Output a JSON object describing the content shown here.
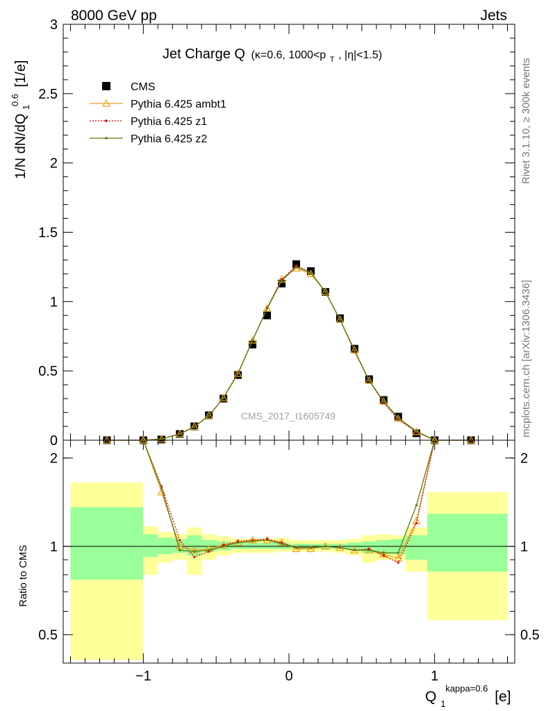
{
  "header": {
    "left_label": "8000 GeV pp",
    "right_label": "Jets",
    "side_label_top": "Rivet 3.1.10, ≥ 300k events",
    "side_label_bottom": "mcplots.cern.ch [arXiv:1306.3436]",
    "watermark": "CMS_2017_I1605749"
  },
  "chart_data": [
    {
      "type": "scatter",
      "title_main": "Jet Charge Q",
      "title_sub": "(κ=0.6, 1000<p",
      "title_sub_subscript": "T",
      "title_sub_end": ", |η|<1.5)",
      "ylabel": "1/N dN/dQ",
      "ylabel_sub": "1",
      "ylabel_sup": "0.6",
      "ylabel_unit": "[1/e]",
      "xlim": [
        -1.55,
        1.55
      ],
      "ylim": [
        0,
        3
      ],
      "y_ticks": [
        "0",
        "0.5",
        "1",
        "1.5",
        "2",
        "2.5",
        "3"
      ],
      "legend_position": "top-left",
      "x": [
        -1.25,
        -1.0,
        -0.875,
        -0.75,
        -0.65,
        -0.55,
        -0.45,
        -0.35,
        -0.25,
        -0.15,
        -0.05,
        0.05,
        0.15,
        0.25,
        0.35,
        0.45,
        0.55,
        0.65,
        0.75,
        0.875,
        1.0,
        1.25
      ],
      "series": [
        {
          "name": "CMS",
          "color": "#000000",
          "marker": "square",
          "values": [
            0.0,
            0.0,
            0.005,
            0.045,
            0.1,
            0.18,
            0.3,
            0.47,
            0.69,
            0.9,
            1.13,
            1.27,
            1.22,
            1.07,
            0.88,
            0.66,
            0.44,
            0.29,
            0.17,
            0.05,
            0.0,
            0.0
          ]
        },
        {
          "name": "Pythia 6.425 ambt1",
          "color": "#e8a21a",
          "marker": "triangle",
          "values": [
            0.0,
            0.0,
            0.008,
            0.045,
            0.098,
            0.178,
            0.305,
            0.48,
            0.72,
            0.95,
            1.16,
            1.24,
            1.2,
            1.07,
            0.87,
            0.65,
            0.43,
            0.28,
            0.155,
            0.06,
            0.0,
            0.0
          ]
        },
        {
          "name": "Pythia 6.425 z1",
          "color": "#dd0000",
          "marker": "dot",
          "values": [
            0.0,
            0.0,
            0.008,
            0.047,
            0.097,
            0.175,
            0.307,
            0.485,
            0.72,
            0.955,
            1.16,
            1.26,
            1.21,
            1.07,
            0.87,
            0.64,
            0.43,
            0.27,
            0.15,
            0.06,
            0.0,
            0.0
          ]
        },
        {
          "name": "Pythia 6.425 z2",
          "color": "#5a7a10",
          "marker": "dot",
          "values": [
            0.0,
            0.0,
            0.008,
            0.044,
            0.096,
            0.176,
            0.305,
            0.48,
            0.72,
            0.95,
            1.15,
            1.25,
            1.21,
            1.07,
            0.87,
            0.65,
            0.43,
            0.28,
            0.16,
            0.065,
            0.0,
            0.0
          ]
        }
      ]
    },
    {
      "type": "line",
      "ylabel": "Ratio to CMS",
      "xlabel": "Q",
      "xlabel_sub": "1",
      "xlabel_sup": "kappa=0.6",
      "xlabel_unit": "[e]",
      "xlim": [
        -1.55,
        1.55
      ],
      "ylim": [
        0.4,
        2.3
      ],
      "x_ticks": [
        "−1",
        "0",
        "1"
      ],
      "y_ticks": [
        "0.5",
        "1",
        "2"
      ],
      "bands": [
        {
          "x0": -1.5,
          "x1": -1.0,
          "y_inner": [
            0.77,
            1.36
          ],
          "y_outer": [
            0.41,
            1.65
          ]
        },
        {
          "x0": -1.0,
          "x1": -0.9,
          "y_inner": [
            0.92,
            1.1
          ],
          "y_outer": [
            0.8,
            1.17
          ]
        },
        {
          "x0": -0.9,
          "x1": -0.8,
          "y_inner": [
            0.94,
            1.07
          ],
          "y_outer": [
            0.88,
            1.12
          ]
        },
        {
          "x0": -0.8,
          "x1": -0.7,
          "y_inner": [
            0.95,
            1.06
          ],
          "y_outer": [
            0.9,
            1.1
          ]
        },
        {
          "x0": -0.7,
          "x1": -0.6,
          "y_inner": [
            0.93,
            1.09
          ],
          "y_outer": [
            0.8,
            1.16
          ]
        },
        {
          "x0": -0.6,
          "x1": -0.5,
          "y_inner": [
            0.96,
            1.05
          ],
          "y_outer": [
            0.9,
            1.1
          ]
        },
        {
          "x0": -0.5,
          "x1": -0.4,
          "y_inner": [
            0.97,
            1.04
          ],
          "y_outer": [
            0.93,
            1.08
          ]
        },
        {
          "x0": -0.4,
          "x1": -0.3,
          "y_inner": [
            0.98,
            1.03
          ],
          "y_outer": [
            0.95,
            1.06
          ]
        },
        {
          "x0": -0.3,
          "x1": -0.2,
          "y_inner": [
            0.98,
            1.03
          ],
          "y_outer": [
            0.95,
            1.06
          ]
        },
        {
          "x0": -0.2,
          "x1": -0.1,
          "y_inner": [
            0.98,
            1.03
          ],
          "y_outer": [
            0.95,
            1.06
          ]
        },
        {
          "x0": -0.1,
          "x1": 0.0,
          "y_inner": [
            0.98,
            1.03
          ],
          "y_outer": [
            0.96,
            1.07
          ]
        },
        {
          "x0": 0.0,
          "x1": 0.1,
          "y_inner": [
            0.98,
            1.02
          ],
          "y_outer": [
            0.96,
            1.05
          ]
        },
        {
          "x0": 0.1,
          "x1": 0.2,
          "y_inner": [
            0.98,
            1.02
          ],
          "y_outer": [
            0.96,
            1.05
          ]
        },
        {
          "x0": 0.2,
          "x1": 0.3,
          "y_inner": [
            0.98,
            1.02
          ],
          "y_outer": [
            0.96,
            1.05
          ]
        },
        {
          "x0": 0.3,
          "x1": 0.4,
          "y_inner": [
            0.98,
            1.02
          ],
          "y_outer": [
            0.95,
            1.05
          ]
        },
        {
          "x0": 0.4,
          "x1": 0.5,
          "y_inner": [
            0.97,
            1.03
          ],
          "y_outer": [
            0.93,
            1.06
          ]
        },
        {
          "x0": 0.5,
          "x1": 0.6,
          "y_inner": [
            0.95,
            1.04
          ],
          "y_outer": [
            0.88,
            1.09
          ]
        },
        {
          "x0": 0.6,
          "x1": 0.7,
          "y_inner": [
            0.94,
            1.05
          ],
          "y_outer": [
            0.9,
            1.1
          ]
        },
        {
          "x0": 0.7,
          "x1": 0.8,
          "y_inner": [
            0.94,
            1.06
          ],
          "y_outer": [
            0.9,
            1.09
          ]
        },
        {
          "x0": 0.8,
          "x1": 0.95,
          "y_inner": [
            0.9,
            1.09
          ],
          "y_outer": [
            0.82,
            1.16
          ]
        },
        {
          "x0": 0.95,
          "x1": 1.5,
          "y_inner": [
            0.82,
            1.29
          ],
          "y_outer": [
            0.56,
            1.53
          ]
        }
      ],
      "x": [
        -1.0,
        -0.875,
        -0.75,
        -0.65,
        -0.55,
        -0.45,
        -0.35,
        -0.25,
        -0.15,
        -0.05,
        0.05,
        0.15,
        0.25,
        0.35,
        0.45,
        0.55,
        0.65,
        0.75,
        0.875,
        1.0
      ],
      "series": [
        {
          "name": "Pythia 6.425 ambt1",
          "color": "#e8a21a",
          "marker": "triangle",
          "values": [
            2.3,
            1.53,
            1.0,
            0.97,
            0.98,
            1.01,
            1.03,
            1.05,
            1.05,
            1.03,
            0.98,
            0.98,
            1.0,
            0.99,
            0.97,
            0.97,
            0.94,
            0.91,
            1.22,
            2.3
          ]
        },
        {
          "name": "Pythia 6.425 z1",
          "color": "#dd0000",
          "marker": "dot",
          "values": [
            2.3,
            1.6,
            1.05,
            0.92,
            0.96,
            1.01,
            1.04,
            1.05,
            1.06,
            1.03,
            0.99,
            0.99,
            1.0,
            0.99,
            0.97,
            0.98,
            0.93,
            0.88,
            1.2,
            2.3
          ]
        },
        {
          "name": "Pythia 6.425 z2",
          "color": "#5a7a10",
          "marker": "dot",
          "values": [
            2.3,
            1.58,
            0.97,
            0.96,
            0.97,
            1.0,
            1.03,
            1.04,
            1.05,
            1.02,
            0.99,
            0.99,
            1.0,
            0.99,
            0.97,
            0.97,
            0.95,
            0.95,
            1.38,
            2.3
          ]
        }
      ]
    }
  ]
}
